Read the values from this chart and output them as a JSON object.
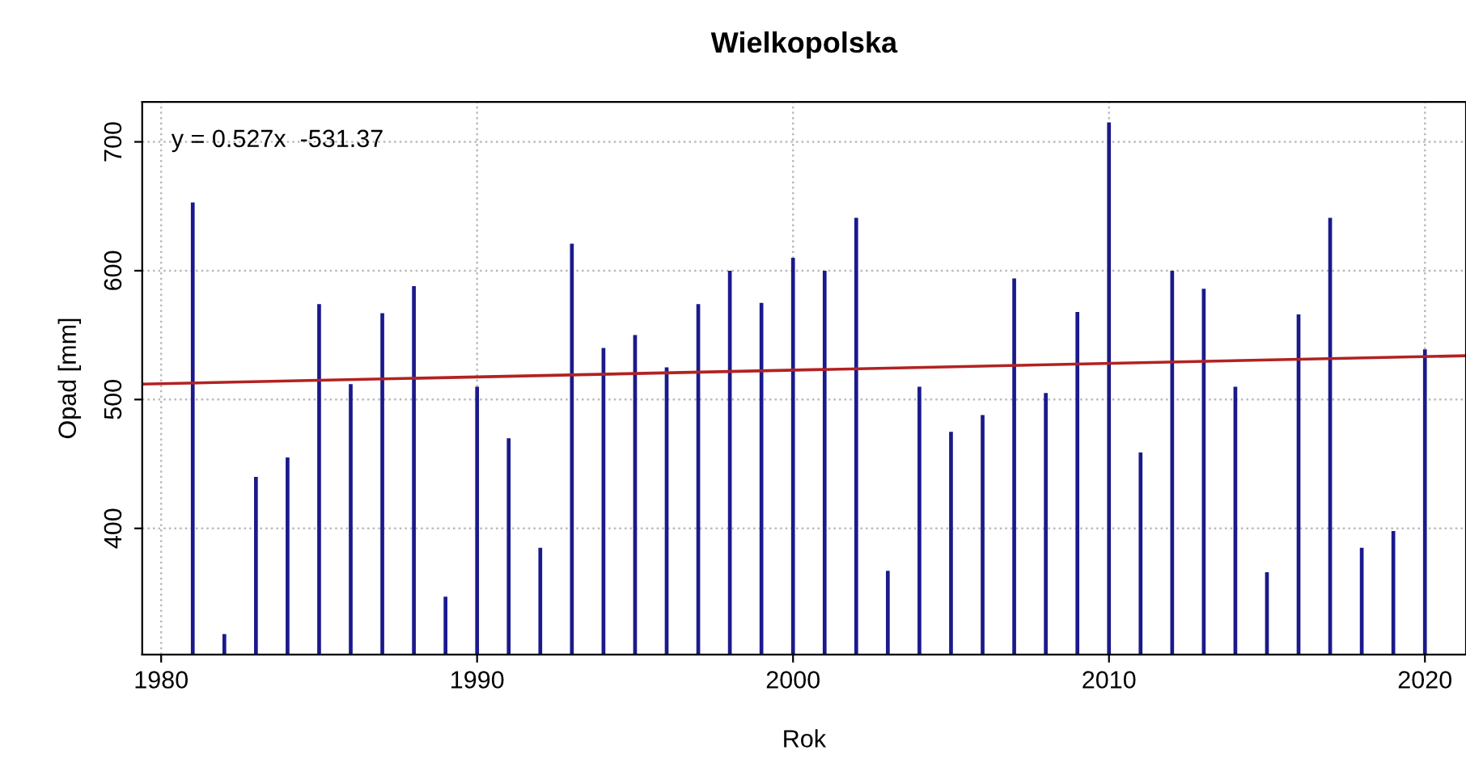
{
  "chart_data": {
    "type": "bar",
    "title": "Wielkopolska",
    "xlabel": "Rok",
    "ylabel": "Opad [mm]",
    "annotations": [
      "y = 0.527x  -531.37"
    ],
    "xlim": [
      1979.4,
      2021.3
    ],
    "xticks": [
      1980,
      1990,
      2000,
      2010,
      2020
    ],
    "ylim": [
      302,
      731
    ],
    "yticks": [
      400,
      500,
      600,
      700
    ],
    "grid": true,
    "marker": "none",
    "series": [
      {
        "color": "#1a1a8c",
        "x": [
          1981,
          1982,
          1983,
          1984,
          1985,
          1986,
          1987,
          1988,
          1989,
          1990,
          1991,
          1992,
          1993,
          1994,
          1995,
          1996,
          1997,
          1998,
          1999,
          2000,
          2001,
          2002,
          2003,
          2004,
          2005,
          2006,
          2007,
          2008,
          2009,
          2010,
          2011,
          2012,
          2013,
          2014,
          2015,
          2016,
          2017,
          2018,
          2019,
          2020
        ],
        "values": [
          653,
          318,
          440,
          455,
          574,
          512,
          567,
          588,
          347,
          510,
          470,
          385,
          621,
          540,
          550,
          525,
          574,
          600,
          575,
          610,
          600,
          641,
          367,
          510,
          475,
          488,
          594,
          505,
          568,
          715,
          459,
          600,
          586,
          510,
          366,
          566,
          641,
          385,
          398,
          539
        ]
      },
      {
        "type": "line",
        "color": "#b22222",
        "x": [
          1979.4,
          2021.3
        ],
        "values": [
          512,
          534
        ]
      }
    ]
  }
}
